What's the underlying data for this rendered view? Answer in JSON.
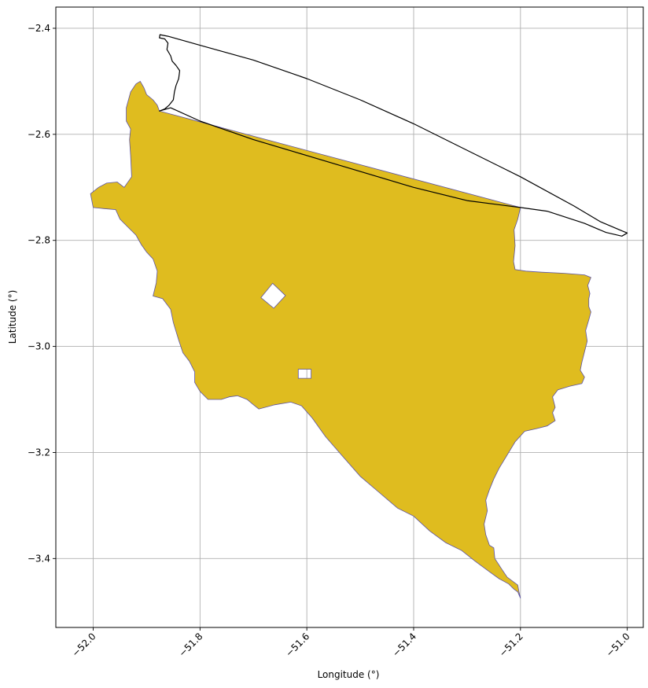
{
  "chart_data": {
    "type": "map",
    "xlabel": "Longitude (°)",
    "ylabel": "Latitude (°)",
    "xlim": [
      -52.07,
      -50.97
    ],
    "ylim": [
      -3.53,
      -2.36
    ],
    "grid": true,
    "x_ticks": [
      -52.0,
      -51.8,
      -51.6,
      -51.4,
      -51.2,
      -51.0
    ],
    "x_tick_labels": [
      "−52.0",
      "−51.8",
      "−51.6",
      "−51.4",
      "−51.2",
      "−51.0"
    ],
    "y_ticks": [
      -2.4,
      -2.6,
      -2.8,
      -3.0,
      -3.2,
      -3.4
    ],
    "y_tick_labels": [
      "−2.4",
      "−2.6",
      "−2.8",
      "−3.0",
      "−3.2",
      "−3.4"
    ],
    "colors": {
      "fill": "#dfbc1f",
      "edge": "#5b52a6",
      "outline": "#000000",
      "grid": "#b0b0b0"
    },
    "region": {
      "outer": [
        [
          -51.876,
          -2.556
        ],
        [
          -51.88,
          -2.545
        ],
        [
          -51.888,
          -2.535
        ],
        [
          -51.9,
          -2.525
        ],
        [
          -51.905,
          -2.512
        ],
        [
          -51.912,
          -2.5
        ],
        [
          -51.92,
          -2.505
        ],
        [
          -51.93,
          -2.52
        ],
        [
          -51.938,
          -2.55
        ],
        [
          -51.938,
          -2.575
        ],
        [
          -51.93,
          -2.59
        ],
        [
          -51.932,
          -2.61
        ],
        [
          -51.93,
          -2.64
        ],
        [
          -51.928,
          -2.68
        ],
        [
          -51.942,
          -2.7
        ],
        [
          -51.955,
          -2.69
        ],
        [
          -51.975,
          -2.692
        ],
        [
          -51.99,
          -2.7
        ],
        [
          -52.005,
          -2.712
        ],
        [
          -52.0,
          -2.738
        ],
        [
          -51.98,
          -2.74
        ],
        [
          -51.958,
          -2.742
        ],
        [
          -51.95,
          -2.76
        ],
        [
          -51.935,
          -2.775
        ],
        [
          -51.92,
          -2.79
        ],
        [
          -51.91,
          -2.808
        ],
        [
          -51.9,
          -2.822
        ],
        [
          -51.888,
          -2.835
        ],
        [
          -51.88,
          -2.858
        ],
        [
          -51.882,
          -2.88
        ],
        [
          -51.888,
          -2.905
        ],
        [
          -51.87,
          -2.91
        ],
        [
          -51.855,
          -2.93
        ],
        [
          -51.85,
          -2.955
        ],
        [
          -51.84,
          -2.988
        ],
        [
          -51.832,
          -3.012
        ],
        [
          -51.82,
          -3.028
        ],
        [
          -51.81,
          -3.048
        ],
        [
          -51.81,
          -3.068
        ],
        [
          -51.8,
          -3.085
        ],
        [
          -51.785,
          -3.1
        ],
        [
          -51.76,
          -3.1
        ],
        [
          -51.745,
          -3.095
        ],
        [
          -51.73,
          -3.093
        ],
        [
          -51.712,
          -3.1
        ],
        [
          -51.7,
          -3.11
        ],
        [
          -51.69,
          -3.118
        ],
        [
          -51.66,
          -3.11
        ],
        [
          -51.63,
          -3.105
        ],
        [
          -51.61,
          -3.112
        ],
        [
          -51.59,
          -3.135
        ],
        [
          -51.565,
          -3.17
        ],
        [
          -51.535,
          -3.205
        ],
        [
          -51.5,
          -3.245
        ],
        [
          -51.465,
          -3.275
        ],
        [
          -51.43,
          -3.305
        ],
        [
          -51.4,
          -3.32
        ],
        [
          -51.37,
          -3.348
        ],
        [
          -51.34,
          -3.37
        ],
        [
          -51.31,
          -3.385
        ],
        [
          -51.285,
          -3.405
        ],
        [
          -51.258,
          -3.425
        ],
        [
          -51.24,
          -3.438
        ],
        [
          -51.222,
          -3.448
        ],
        [
          -51.212,
          -3.458
        ],
        [
          -51.205,
          -3.463
        ],
        [
          -51.2,
          -3.475
        ],
        [
          -51.203,
          -3.462
        ],
        [
          -51.205,
          -3.45
        ],
        [
          -51.225,
          -3.435
        ],
        [
          -51.235,
          -3.42
        ],
        [
          -51.248,
          -3.4
        ],
        [
          -51.25,
          -3.38
        ],
        [
          -51.258,
          -3.375
        ],
        [
          -51.265,
          -3.355
        ],
        [
          -51.268,
          -3.335
        ],
        [
          -51.262,
          -3.31
        ],
        [
          -51.265,
          -3.29
        ],
        [
          -51.258,
          -3.27
        ],
        [
          -51.25,
          -3.25
        ],
        [
          -51.24,
          -3.23
        ],
        [
          -51.228,
          -3.21
        ],
        [
          -51.21,
          -3.18
        ],
        [
          -51.192,
          -3.16
        ],
        [
          -51.17,
          -3.155
        ],
        [
          -51.15,
          -3.15
        ],
        [
          -51.135,
          -3.14
        ],
        [
          -51.14,
          -3.125
        ],
        [
          -51.135,
          -3.115
        ],
        [
          -51.14,
          -3.095
        ],
        [
          -51.13,
          -3.082
        ],
        [
          -51.108,
          -3.075
        ],
        [
          -51.085,
          -3.07
        ],
        [
          -51.08,
          -3.058
        ],
        [
          -51.088,
          -3.045
        ],
        [
          -51.085,
          -3.03
        ],
        [
          -51.08,
          -3.01
        ],
        [
          -51.075,
          -2.99
        ],
        [
          -51.078,
          -2.97
        ],
        [
          -51.072,
          -2.95
        ],
        [
          -51.068,
          -2.935
        ],
        [
          -51.072,
          -2.925
        ],
        [
          -51.072,
          -2.91
        ],
        [
          -51.07,
          -2.9
        ],
        [
          -51.074,
          -2.885
        ],
        [
          -51.068,
          -2.87
        ],
        [
          -51.08,
          -2.865
        ],
        [
          -51.12,
          -2.862
        ],
        [
          -51.16,
          -2.86
        ],
        [
          -51.19,
          -2.858
        ],
        [
          -51.21,
          -2.855
        ],
        [
          -51.213,
          -2.84
        ],
        [
          -51.21,
          -2.81
        ],
        [
          -51.212,
          -2.78
        ],
        [
          -51.205,
          -2.76
        ],
        [
          -51.2,
          -2.738
        ]
      ],
      "holes": [
        [
          [
            -51.686,
            -2.908
          ],
          [
            -51.664,
            -2.881
          ],
          [
            -51.64,
            -2.904
          ],
          [
            -51.662,
            -2.928
          ]
        ],
        [
          [
            -51.616,
            -3.043
          ],
          [
            -51.592,
            -3.043
          ],
          [
            -51.592,
            -3.06
          ],
          [
            -51.616,
            -3.06
          ]
        ]
      ]
    },
    "outline_path": [
      [
        -51.876,
        -2.556
      ],
      [
        -51.855,
        -2.55
      ],
      [
        -51.8,
        -2.575
      ],
      [
        -51.7,
        -2.61
      ],
      [
        -51.6,
        -2.64
      ],
      [
        -51.5,
        -2.67
      ],
      [
        -51.4,
        -2.7
      ],
      [
        -51.3,
        -2.725
      ],
      [
        -51.2,
        -2.738
      ],
      [
        -51.15,
        -2.745
      ],
      [
        -51.08,
        -2.768
      ],
      [
        -51.04,
        -2.785
      ],
      [
        -51.01,
        -2.792
      ],
      [
        -51.0,
        -2.786
      ],
      [
        -51.01,
        -2.782
      ],
      [
        -51.05,
        -2.765
      ],
      [
        -51.1,
        -2.735
      ],
      [
        -51.2,
        -2.68
      ],
      [
        -51.3,
        -2.63
      ],
      [
        -51.4,
        -2.58
      ],
      [
        -51.5,
        -2.535
      ],
      [
        -51.6,
        -2.495
      ],
      [
        -51.7,
        -2.46
      ],
      [
        -51.8,
        -2.432
      ],
      [
        -51.86,
        -2.415
      ],
      [
        -51.875,
        -2.412
      ],
      [
        -51.876,
        -2.418
      ],
      [
        -51.866,
        -2.42
      ],
      [
        -51.86,
        -2.428
      ],
      [
        -51.862,
        -2.44
      ],
      [
        -51.855,
        -2.452
      ],
      [
        -51.852,
        -2.462
      ],
      [
        -51.845,
        -2.47
      ],
      [
        -51.838,
        -2.48
      ],
      [
        -51.84,
        -2.495
      ],
      [
        -51.845,
        -2.508
      ],
      [
        -51.848,
        -2.52
      ],
      [
        -51.85,
        -2.535
      ],
      [
        -51.858,
        -2.545
      ],
      [
        -51.866,
        -2.552
      ],
      [
        -51.876,
        -2.556
      ]
    ]
  }
}
